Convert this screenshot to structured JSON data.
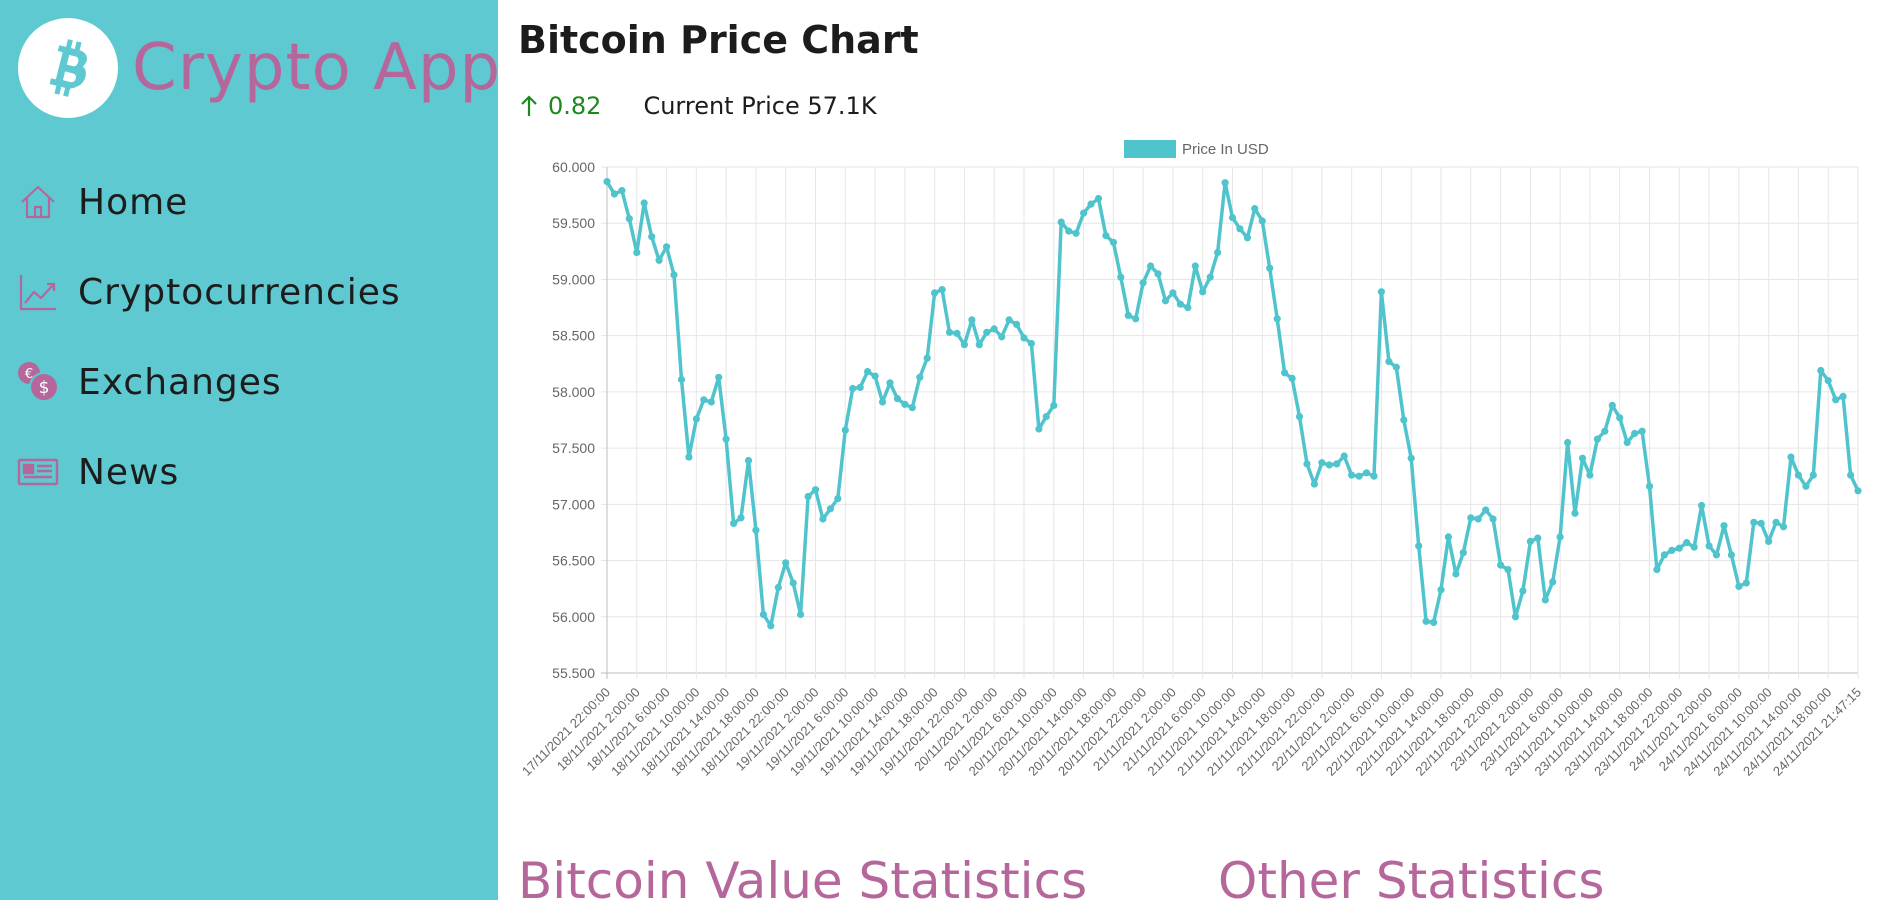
{
  "app": {
    "title": "Crypto App"
  },
  "nav": {
    "items": [
      {
        "label": "Home",
        "icon": "home-icon"
      },
      {
        "label": "Cryptocurrencies",
        "icon": "line-chart-icon"
      },
      {
        "label": "Exchanges",
        "icon": "coins-icon"
      },
      {
        "label": "News",
        "icon": "newspaper-icon"
      }
    ]
  },
  "colors": {
    "sidebar": "#5ec9d1",
    "accent": "#b5679b",
    "line": "#4fc4cc",
    "positive": "#1b8a1b"
  },
  "page": {
    "title": "Bitcoin Price Chart",
    "change": "0.82",
    "current_price": "Current Price 57.1K"
  },
  "chart_data": {
    "type": "line",
    "legend": "Price In USD",
    "legend_position": "top-center",
    "grid": true,
    "ylim": [
      55500,
      60000
    ],
    "yticks": [
      "60.000",
      "59.500",
      "59.000",
      "58.500",
      "58.000",
      "57.500",
      "57.000",
      "56.500",
      "56.000",
      "55.500"
    ],
    "xticks": [
      "17/11/2021 22:00:00",
      "18/11/2021 2:00:00",
      "18/11/2021 6:00:00",
      "18/11/2021 10:00:00",
      "18/11/2021 14:00:00",
      "18/11/2021 18:00:00",
      "18/11/2021 22:00:00",
      "19/11/2021 2:00:00",
      "19/11/2021 6:00:00",
      "19/11/2021 10:00:00",
      "19/11/2021 14:00:00",
      "19/11/2021 18:00:00",
      "19/11/2021 22:00:00",
      "20/11/2021 2:00:00",
      "20/11/2021 6:00:00",
      "20/11/2021 10:00:00",
      "20/11/2021 14:00:00",
      "20/11/2021 18:00:00",
      "20/11/2021 22:00:00",
      "21/11/2021 2:00:00",
      "21/11/2021 6:00:00",
      "21/11/2021 10:00:00",
      "21/11/2021 14:00:00",
      "21/11/2021 18:00:00",
      "21/11/2021 22:00:00",
      "22/11/2021 2:00:00",
      "22/11/2021 6:00:00",
      "22/11/2021 10:00:00",
      "22/11/2021 14:00:00",
      "22/11/2021 18:00:00",
      "22/11/2021 22:00:00",
      "23/11/2021 2:00:00",
      "23/11/2021 6:00:00",
      "23/11/2021 10:00:00",
      "23/11/2021 14:00:00",
      "23/11/2021 18:00:00",
      "23/11/2021 22:00:00",
      "24/11/2021 2:00:00",
      "24/11/2021 6:00:00",
      "24/11/2021 10:00:00",
      "24/11/2021 14:00:00",
      "24/11/2021 18:00:00",
      "24/11/2021 21:47:15"
    ],
    "values": [
      59870,
      59760,
      59790,
      59540,
      59240,
      59680,
      59380,
      59170,
      59290,
      59040,
      58110,
      57420,
      57760,
      57930,
      57910,
      58130,
      57580,
      56830,
      56880,
      57390,
      56770,
      56020,
      55920,
      56260,
      56480,
      56300,
      56020,
      57070,
      57130,
      56870,
      56960,
      57050,
      57660,
      58030,
      58040,
      58180,
      58140,
      57910,
      58080,
      57940,
      57890,
      57860,
      58130,
      58300,
      58880,
      58910,
      58530,
      58520,
      58420,
      58640,
      58420,
      58530,
      58560,
      58490,
      58640,
      58600,
      58480,
      58430,
      57670,
      57780,
      57880,
      59510,
      59430,
      59410,
      59590,
      59670,
      59720,
      59390,
      59330,
      59020,
      58680,
      58650,
      58970,
      59120,
      59050,
      58810,
      58880,
      58780,
      58750,
      59120,
      58890,
      59020,
      59240,
      59860,
      59550,
      59450,
      59370,
      59630,
      59520,
      59100,
      58650,
      58170,
      58120,
      57780,
      57360,
      57180,
      57370,
      57350,
      57360,
      57430,
      57260,
      57250,
      57280,
      57250,
      58890,
      58270,
      58220,
      57750,
      57410,
      56630,
      55960,
      55950,
      56240,
      56710,
      56380,
      56570,
      56880,
      56870,
      56950,
      56870,
      56460,
      56420,
      56000,
      56230,
      56670,
      56700,
      56150,
      56310,
      56710,
      57550,
      56920,
      57410,
      57260,
      57580,
      57650,
      57880,
      57770,
      57550,
      57630,
      57650,
      57160,
      56420,
      56550,
      56590,
      56610,
      56660,
      56620,
      56990,
      56630,
      56550,
      56810,
      56550,
      56270,
      56300,
      56840,
      56830,
      56670,
      56840,
      56800,
      57420,
      57260,
      57160,
      57260,
      58190,
      58100,
      57930,
      57960,
      57260,
      57120
    ]
  },
  "sections": {
    "value_stats": "Bitcoin Value Statistics",
    "other_stats": "Other Statistics"
  }
}
